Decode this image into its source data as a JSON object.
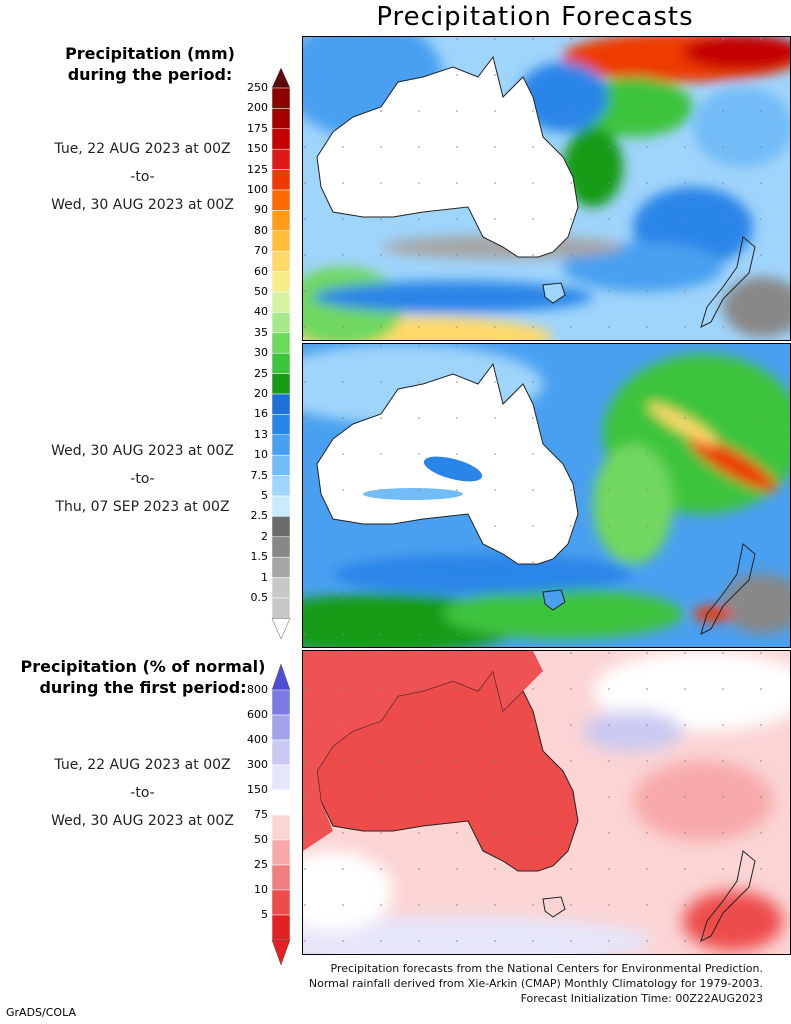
{
  "title": "Precipitation Forecasts",
  "precip_legend": {
    "heading_line1": "Precipitation (mm)",
    "heading_line2": "during the period:",
    "levels": [
      "250",
      "200",
      "175",
      "150",
      "125",
      "100",
      "90",
      "80",
      "70",
      "60",
      "50",
      "40",
      "35",
      "30",
      "25",
      "20",
      "16",
      "13",
      "10",
      "7.5",
      "5",
      "2.5",
      "2",
      "1.5",
      "1",
      "0.5"
    ],
    "colors": [
      "#5c0b0b",
      "#8b0000",
      "#a80000",
      "#c40000",
      "#dc1a1a",
      "#ee3a00",
      "#ff6a00",
      "#ff9d1a",
      "#ffbf3a",
      "#ffd96b",
      "#f5ec8a",
      "#d7f2a3",
      "#a8e88c",
      "#6fd85f",
      "#3cc43c",
      "#179b17",
      "#1f6fd6",
      "#2a85e8",
      "#4aa0f0",
      "#72bcf7",
      "#9fd4fb",
      "#c8ecfc",
      "#6b6b6b",
      "#888888",
      "#a6a6a6",
      "#c8c8c8"
    ]
  },
  "period1": {
    "start": "Tue, 22 AUG 2023 at 00Z",
    "sep": "-to-",
    "end": "Wed, 30 AUG 2023 at 00Z"
  },
  "period2": {
    "start": "Wed, 30 AUG 2023 at 00Z",
    "sep": "-to-",
    "end": "Thu, 07 SEP 2023 at 00Z"
  },
  "pct_legend": {
    "heading_line1": "Precipitation (% of normal)",
    "heading_line2": "during the first period:",
    "levels": [
      "800",
      "600",
      "400",
      "300",
      "150",
      "75",
      "50",
      "25",
      "10",
      "5"
    ],
    "colors": [
      "#4d4dd6",
      "#7a7ae0",
      "#a3a3ea",
      "#c9c9f3",
      "#e6e6fa",
      "#ffffff",
      "#fbd4d4",
      "#f7a9a9",
      "#f27d7d",
      "#ee4b4b",
      "#e22222"
    ]
  },
  "period3": {
    "start": "Tue, 22 AUG 2023 at 00Z",
    "sep": "-to-",
    "end": "Wed, 30 AUG 2023 at 00Z"
  },
  "footer": {
    "line1": "Precipitation forecasts from the National Centers for Environmental Prediction.",
    "line2": "Normal rainfall derived from Xie-Arkin (CMAP) Monthly Climatology for 1979-2003.",
    "line3": "Forecast Initialization Time: 00Z22AUG2023"
  },
  "credit": "GrADS/COLA"
}
